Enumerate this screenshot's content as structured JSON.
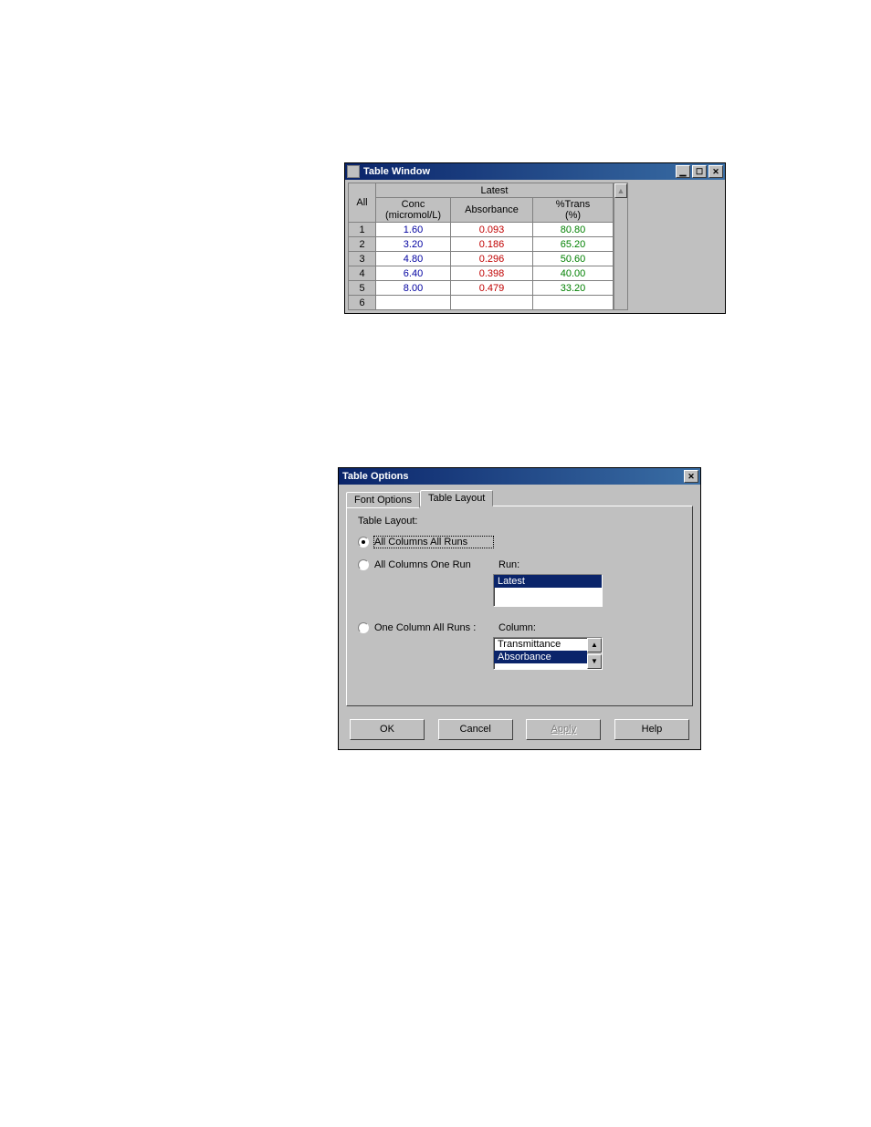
{
  "colors": {
    "titlebar_start": "#0a246a",
    "titlebar_end": "#3a6ea5",
    "face": "#c0c0c0",
    "conc": "#0000a0",
    "absorbance": "#c00000",
    "trans": "#008000",
    "text": "#000000",
    "white": "#ffffff",
    "disabled": "#808080"
  },
  "table_window": {
    "title": "Table  Window",
    "header_group": "Latest",
    "corner_label": "All",
    "columns": [
      {
        "key": "conc",
        "label_top": "Conc",
        "label_bottom": "(micromol/L)",
        "color": "#0000a0"
      },
      {
        "key": "abs",
        "label_top": "Absorbance",
        "label_bottom": "",
        "color": "#c00000"
      },
      {
        "key": "trans",
        "label_top": "%Trans",
        "label_bottom": "(%)",
        "color": "#008000"
      }
    ],
    "rows": [
      {
        "n": "1",
        "conc": "1.60",
        "abs": "0.093",
        "trans": "80.80"
      },
      {
        "n": "2",
        "conc": "3.20",
        "abs": "0.186",
        "trans": "65.20"
      },
      {
        "n": "3",
        "conc": "4.80",
        "abs": "0.296",
        "trans": "50.60"
      },
      {
        "n": "4",
        "conc": "6.40",
        "abs": "0.398",
        "trans": "40.00"
      },
      {
        "n": "5",
        "conc": "8.00",
        "abs": "0.479",
        "trans": "33.20"
      },
      {
        "n": "6",
        "conc": "",
        "abs": "",
        "trans": ""
      }
    ]
  },
  "options_dialog": {
    "title": "Table Options",
    "tabs": {
      "font": "Font Options",
      "layout": "Table Layout"
    },
    "active_tab": "layout",
    "section_label": "Table Layout:",
    "radios": {
      "opt1": {
        "label": "All Columns  All Runs",
        "checked": true
      },
      "opt2": {
        "label": "All Columns One Run",
        "checked": false,
        "sublabel": "Run:"
      },
      "opt3": {
        "label": "One Column All Runs :",
        "checked": false,
        "sublabel": "Column:"
      }
    },
    "run_list": {
      "items": [
        "Latest"
      ],
      "selected": "Latest"
    },
    "column_list": {
      "items": [
        "Transmittance",
        "Absorbance"
      ],
      "selected": "Absorbance"
    },
    "buttons": {
      "ok": "OK",
      "cancel": "Cancel",
      "apply": "Apply",
      "help": "Help"
    }
  }
}
